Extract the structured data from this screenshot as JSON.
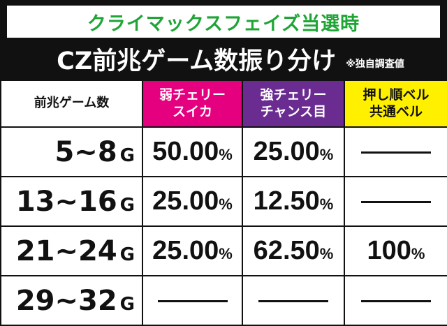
{
  "banner": "クライマックスフェイズ当選時",
  "title": "CZ前兆ゲーム数振り分け",
  "note": "※独自調査値",
  "headers": [
    [
      "前兆ゲーム数"
    ],
    [
      "弱チェリー",
      "スイカ"
    ],
    [
      "強チェリー",
      "チャンス目"
    ],
    [
      "押し順ベル",
      "共通ベル"
    ]
  ],
  "unit_g": "G",
  "rows": [
    {
      "label": "5~8",
      "values": [
        "50.00",
        "25.00",
        "—"
      ]
    },
    {
      "label": "13~16",
      "values": [
        "25.00",
        "12.50",
        "—"
      ]
    },
    {
      "label": "21~24",
      "values": [
        "25.00",
        "62.50",
        "100"
      ]
    },
    {
      "label": "29~32",
      "values": [
        "—",
        "—",
        "—"
      ]
    }
  ],
  "percent_sign": "%",
  "colors": {
    "banner_text": "#1ea536",
    "weak_cherry": "#e4007f",
    "strong_cherry": "#6a2c91",
    "bell": "#fff000"
  }
}
